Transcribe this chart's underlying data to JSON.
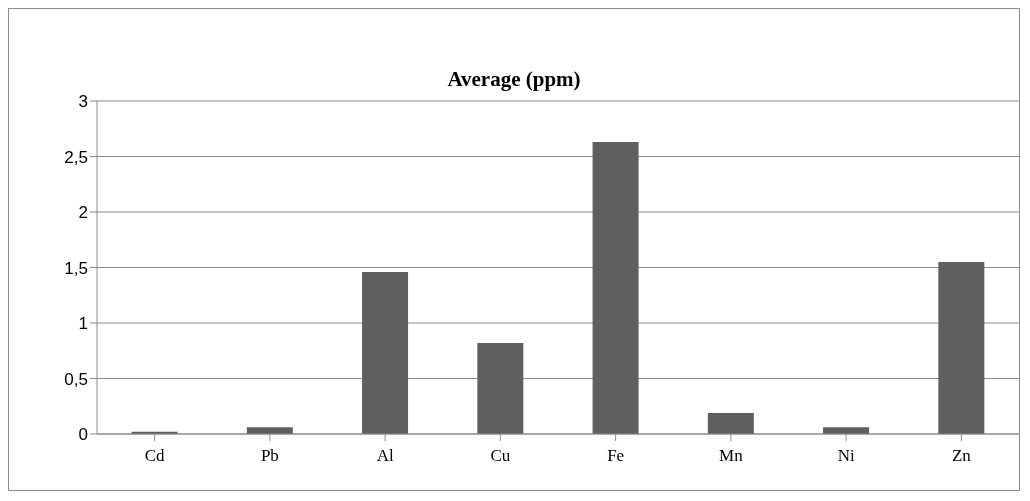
{
  "chart_data": {
    "type": "bar",
    "title": "Average (ppm)",
    "categories": [
      "Cd",
      "Pb",
      "Al",
      "Cu",
      "Fe",
      "Mn",
      "Ni",
      "Zn"
    ],
    "values": [
      0.02,
      0.06,
      1.46,
      0.82,
      2.63,
      0.19,
      0.06,
      1.55
    ],
    "color": "#5f5f5f",
    "ylim": [
      0,
      3
    ],
    "yticks": [
      {
        "value": 0,
        "label": "0"
      },
      {
        "value": 0.5,
        "label": "0,5"
      },
      {
        "value": 1,
        "label": "1"
      },
      {
        "value": 1.5,
        "label": "1,5"
      },
      {
        "value": 2,
        "label": "2"
      },
      {
        "value": 2.5,
        "label": "2,5"
      },
      {
        "value": 3,
        "label": "3"
      }
    ],
    "grid": "y",
    "legend": false
  }
}
